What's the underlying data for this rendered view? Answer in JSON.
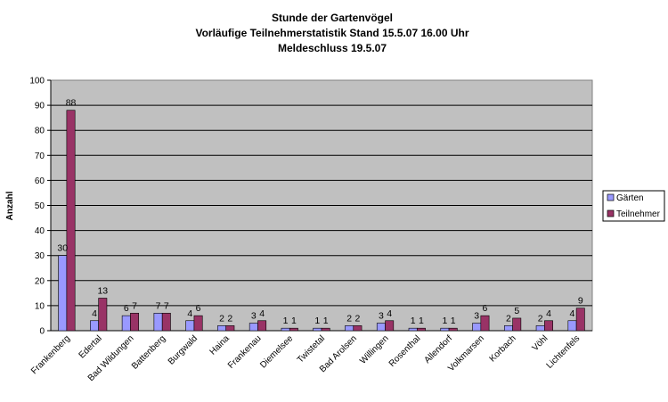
{
  "chart_data": {
    "type": "bar",
    "title": "Stunde der Gartenvögel",
    "subtitle": "Vorläufige Teilnehmerstatistik Stand 15.5.07  16.00 Uhr",
    "subtitle2": "Meldeschluss  19.5.07",
    "xlabel": "",
    "ylabel": "Anzahl",
    "ylim": [
      0,
      100
    ],
    "yticks": [
      0,
      10,
      20,
      30,
      40,
      50,
      60,
      70,
      80,
      90,
      100
    ],
    "grid": true,
    "legend_position": "right",
    "categories": [
      "Frankenberg",
      "Edertal",
      "Bad Wildungen",
      "Battenberg",
      "Burgwald",
      "Haina",
      "Frankenau",
      "Diemelsee",
      "Twistetal",
      "Bad Arolsen",
      "Willingen",
      "Rosenthal",
      "Allendorf",
      "Volkmarsen",
      "Korbach",
      "Vöhl",
      "Lichtenfels"
    ],
    "series": [
      {
        "name": "Gärten",
        "color": "#9999ff",
        "values": [
          30,
          4,
          6,
          7,
          4,
          2,
          3,
          1,
          1,
          2,
          3,
          1,
          1,
          3,
          2,
          2,
          4
        ]
      },
      {
        "name": "Teilnehmer",
        "color": "#993366",
        "values": [
          88,
          13,
          7,
          7,
          6,
          2,
          4,
          1,
          1,
          2,
          4,
          1,
          1,
          6,
          5,
          4,
          9
        ]
      }
    ],
    "plot_background": "#c0c0c0"
  }
}
